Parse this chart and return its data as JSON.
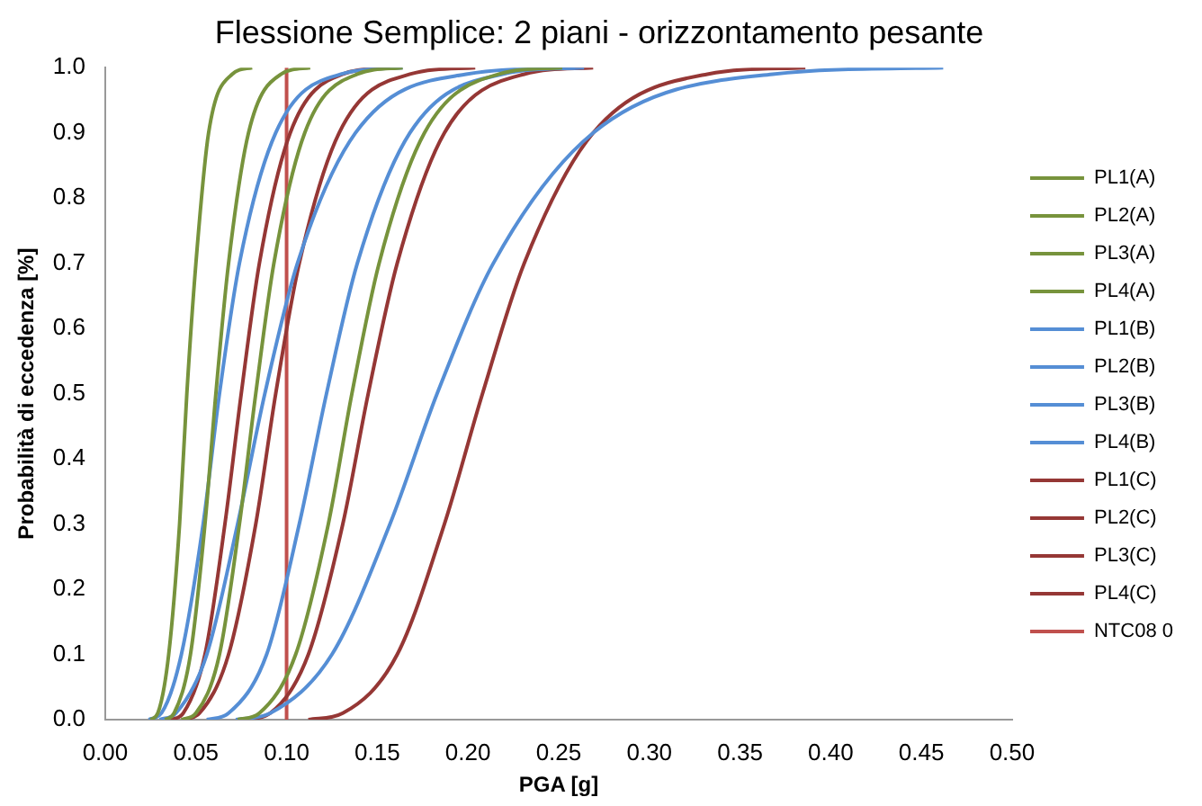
{
  "chart_data": {
    "type": "line",
    "title": "Flessione Semplice: 2 piani - orizzontamento pesante",
    "xlabel": "PGA [g]",
    "ylabel": "Probabilità di eccedenza [%]",
    "xlim": [
      0,
      0.5
    ],
    "ylim": [
      0,
      1
    ],
    "xticks": [
      {
        "value": 0,
        "label": "0.00"
      },
      {
        "value": 0.05,
        "label": "0.05"
      },
      {
        "value": 0.1,
        "label": "0.10"
      },
      {
        "value": 0.15,
        "label": "0.15"
      },
      {
        "value": 0.2,
        "label": "0.20"
      },
      {
        "value": 0.25,
        "label": "0.25"
      },
      {
        "value": 0.3,
        "label": "0.30"
      },
      {
        "value": 0.35,
        "label": "0.35"
      },
      {
        "value": 0.4,
        "label": "0.40"
      },
      {
        "value": 0.45,
        "label": "0.45"
      },
      {
        "value": 0.5,
        "label": "0.50"
      }
    ],
    "yticks": [
      {
        "value": 0,
        "label": "0.0"
      },
      0.1,
      0.2,
      0.3,
      0.4,
      0.5,
      0.6,
      0.7,
      0.8,
      0.9,
      {
        "value": 1,
        "label": "1.0"
      }
    ],
    "grid": false,
    "legend": "right",
    "marker": "none",
    "line_style": "solid",
    "series": [
      {
        "name": "PL1(A)",
        "color": "#77933c",
        "x": [
          0.025,
          0.029,
          0.035,
          0.041,
          0.045,
          0.05,
          0.057,
          0.07,
          0.081
        ],
        "values": [
          0,
          0.01,
          0.1,
          0.3,
          0.5,
          0.7,
          0.9,
          0.99,
          1
        ]
      },
      {
        "name": "PL2(A)",
        "color": "#77933c",
        "x": [
          0.033,
          0.038,
          0.047,
          0.055,
          0.061,
          0.068,
          0.079,
          0.097,
          0.113
        ],
        "values": [
          0,
          0.01,
          0.1,
          0.3,
          0.5,
          0.7,
          0.9,
          0.99,
          1
        ]
      },
      {
        "name": "PL3(A)",
        "color": "#77933c",
        "x": [
          0.042,
          0.05,
          0.063,
          0.074,
          0.083,
          0.093,
          0.11,
          0.139,
          0.164
        ],
        "values": [
          0,
          0.01,
          0.1,
          0.3,
          0.5,
          0.7,
          0.9,
          0.99,
          1
        ]
      },
      {
        "name": "PL4(A)",
        "color": "#77933c",
        "x": [
          0.073,
          0.085,
          0.105,
          0.123,
          0.136,
          0.151,
          0.176,
          0.217,
          0.252
        ],
        "values": [
          0,
          0.01,
          0.1,
          0.3,
          0.5,
          0.7,
          0.9,
          0.99,
          1
        ]
      },
      {
        "name": "PL1(B)",
        "color": "#558ed5",
        "x": [
          0.024,
          0.031,
          0.042,
          0.054,
          0.063,
          0.074,
          0.094,
          0.13,
          0.164
        ],
        "values": [
          0,
          0.01,
          0.1,
          0.3,
          0.5,
          0.7,
          0.9,
          0.99,
          1
        ]
      },
      {
        "name": "PL2(B)",
        "color": "#558ed5",
        "x": [
          0.03,
          0.039,
          0.056,
          0.073,
          0.088,
          0.106,
          0.138,
          0.199,
          0.259
        ],
        "values": [
          0,
          0.01,
          0.1,
          0.3,
          0.5,
          0.7,
          0.9,
          0.99,
          1
        ]
      },
      {
        "name": "PL3(B)",
        "color": "#558ed5",
        "x": [
          0.056,
          0.068,
          0.089,
          0.107,
          0.122,
          0.139,
          0.168,
          0.219,
          0.264
        ],
        "values": [
          0,
          0.01,
          0.1,
          0.3,
          0.5,
          0.7,
          0.9,
          0.99,
          1
        ]
      },
      {
        "name": "PL4(B)",
        "color": "#558ed5",
        "x": [
          0.072,
          0.091,
          0.125,
          0.157,
          0.183,
          0.214,
          0.269,
          0.368,
          0.462
        ],
        "values": [
          0,
          0.01,
          0.1,
          0.3,
          0.5,
          0.7,
          0.9,
          0.99,
          1
        ]
      },
      {
        "name": "PL1(C)",
        "color": "#953735",
        "x": [
          0.036,
          0.043,
          0.055,
          0.066,
          0.075,
          0.085,
          0.102,
          0.131,
          0.157
        ],
        "values": [
          0,
          0.01,
          0.1,
          0.3,
          0.5,
          0.7,
          0.9,
          0.99,
          1
        ]
      },
      {
        "name": "PL2(C)",
        "color": "#953735",
        "x": [
          0.043,
          0.052,
          0.068,
          0.083,
          0.094,
          0.107,
          0.129,
          0.168,
          0.204
        ],
        "values": [
          0,
          0.01,
          0.1,
          0.3,
          0.5,
          0.7,
          0.9,
          0.99,
          1
        ]
      },
      {
        "name": "PL3(C)",
        "color": "#953735",
        "x": [
          0.078,
          0.091,
          0.112,
          0.131,
          0.145,
          0.161,
          0.187,
          0.231,
          0.269
        ],
        "values": [
          0,
          0.01,
          0.1,
          0.3,
          0.5,
          0.7,
          0.9,
          0.99,
          1
        ]
      },
      {
        "name": "PL4(C)",
        "color": "#953735",
        "x": [
          0.112,
          0.131,
          0.161,
          0.187,
          0.208,
          0.231,
          0.269,
          0.332,
          0.386
        ],
        "values": [
          0,
          0.01,
          0.1,
          0.3,
          0.5,
          0.7,
          0.9,
          0.99,
          1
        ]
      },
      {
        "name": "NTC08 0",
        "color": "#c0504d",
        "x": [
          0.1,
          0.1
        ],
        "values": [
          0,
          1
        ]
      }
    ]
  }
}
